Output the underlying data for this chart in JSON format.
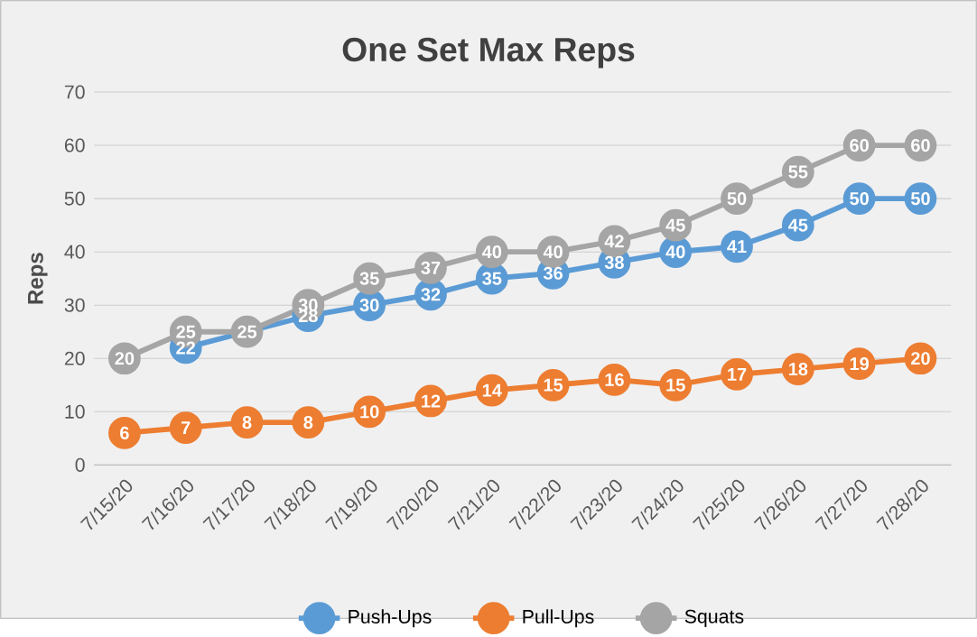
{
  "chart_data": {
    "type": "line",
    "title": "One Set Max Reps",
    "ylabel": "Reps",
    "categories": [
      "7/15/20",
      "7/16/20",
      "7/17/20",
      "7/18/20",
      "7/19/20",
      "7/20/20",
      "7/21/20",
      "7/22/20",
      "7/23/20",
      "7/24/20",
      "7/25/20",
      "7/26/20",
      "7/27/20",
      "7/28/20"
    ],
    "series": [
      {
        "name": "Push-Ups",
        "color": "#5b9bd5",
        "values": [
          null,
          22,
          null,
          28,
          30,
          32,
          35,
          36,
          38,
          40,
          41,
          45,
          50,
          50
        ],
        "value_labels": [
          null,
          "22",
          null,
          "28",
          "30",
          "32",
          "35",
          "36",
          "38",
          "40",
          "41",
          "45",
          "50",
          "50"
        ]
      },
      {
        "name": "Pull-Ups",
        "color": "#ed7d31",
        "values": [
          6,
          7,
          8,
          8,
          10,
          12,
          14,
          15,
          16,
          15,
          17,
          18,
          19,
          20
        ],
        "value_labels": [
          "6",
          "7",
          "8",
          "8",
          "10",
          "12",
          "14",
          "15",
          "16",
          "15",
          "17",
          "18",
          "19",
          "20"
        ]
      },
      {
        "name": "Squats",
        "color": "#a5a5a5",
        "values": [
          20,
          25,
          25,
          30,
          35,
          37,
          40,
          40,
          42,
          45,
          50,
          55,
          60,
          60
        ],
        "value_labels": [
          "20",
          "25",
          "25",
          "30",
          "35",
          "37",
          "40",
          "40",
          "42",
          "45",
          "50",
          "55",
          "60",
          "60"
        ]
      }
    ],
    "ylim": [
      0,
      70
    ],
    "yticks": [
      0,
      10,
      20,
      30,
      40,
      50,
      60,
      70
    ],
    "grid": "y",
    "legend": "bottom",
    "marker": "circle",
    "line_style": "solid"
  }
}
